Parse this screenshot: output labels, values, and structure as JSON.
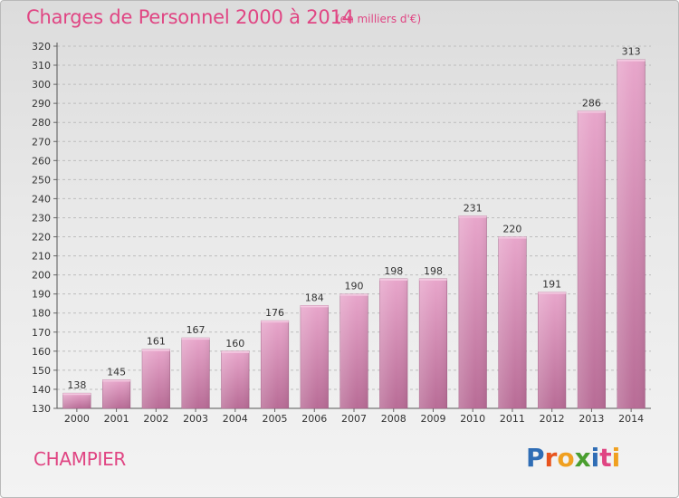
{
  "header": {
    "title": "Charges de Personnel 2000 à 2014",
    "subtitle": "(en milliers d'€)"
  },
  "footer": {
    "place": "CHAMPIER",
    "logo_text": "Proxiti",
    "logo_colors": [
      "#2f6db5",
      "#e8541e",
      "#f0a020",
      "#4a9e2f",
      "#2f6db5",
      "#e04583",
      "#f0a020"
    ]
  },
  "colors": {
    "title": "#e04583",
    "bar_top": "#e8a6cb",
    "bar_bottom": "#b86c96"
  },
  "chart_data": {
    "type": "bar",
    "title": "Charges de Personnel 2000 à 2014",
    "subtitle": "(en milliers d'€)",
    "xlabel": "",
    "ylabel": "",
    "categories": [
      "2000",
      "2001",
      "2002",
      "2003",
      "2004",
      "2005",
      "2006",
      "2007",
      "2008",
      "2009",
      "2010",
      "2011",
      "2012",
      "2013",
      "2014"
    ],
    "values": [
      138,
      145,
      161,
      167,
      160,
      176,
      184,
      190,
      198,
      198,
      231,
      220,
      191,
      286,
      313
    ],
    "ylim": [
      130,
      320
    ],
    "yticks": [
      130,
      140,
      150,
      160,
      170,
      180,
      190,
      200,
      210,
      220,
      230,
      240,
      250,
      260,
      270,
      280,
      290,
      300,
      310,
      320
    ],
    "grid": "horizontal dashed",
    "legend": "none"
  }
}
